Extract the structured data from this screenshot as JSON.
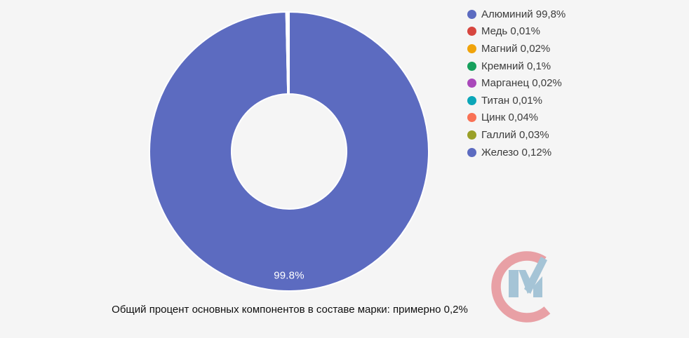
{
  "background_color": "#f5f5f5",
  "chart_data": {
    "type": "pie",
    "variant": "donut",
    "legend_position": "right",
    "donut_hole_ratio": 0.41,
    "border_color": "#ffffff",
    "slices": [
      {
        "label": "Алюминий",
        "value": 99.8,
        "display": "99,8%",
        "legend_label": "Алюминий 99,8%",
        "color": "#5c6bc0"
      },
      {
        "label": "Медь",
        "value": 0.01,
        "display": "0,01%",
        "legend_label": "Медь 0,01%",
        "color": "#d7463f"
      },
      {
        "label": "Магний",
        "value": 0.02,
        "display": "0,02%",
        "legend_label": "Магний 0,02%",
        "color": "#f0a30a"
      },
      {
        "label": "Кремний",
        "value": 0.1,
        "display": "0,1%",
        "legend_label": "Кремний 0,1%",
        "color": "#16a05c"
      },
      {
        "label": "Марганец",
        "value": 0.02,
        "display": "0,02%",
        "legend_label": "Марганец 0,02%",
        "color": "#a948ba"
      },
      {
        "label": "Титан",
        "value": 0.01,
        "display": "0,01%",
        "legend_label": "Титан 0,01%",
        "color": "#0ba6b8"
      },
      {
        "label": "Цинк",
        "value": 0.04,
        "display": "0,04%",
        "legend_label": "Цинк 0,04%",
        "color": "#f97155"
      },
      {
        "label": "Галлий",
        "value": 0.03,
        "display": "0,03%",
        "legend_label": "Галлий 0,03%",
        "color": "#9aa028"
      },
      {
        "label": "Железо",
        "value": 0.12,
        "display": "0,12%",
        "legend_label": "Железо 0,12%",
        "color": "#5c6bc0"
      }
    ],
    "slice_label": {
      "text": "99.8%",
      "color": "#ffffff"
    }
  },
  "caption": "Общий процент основных компонентов в составе марки: примерно 0,2%",
  "logo": {
    "name": "CM watermark",
    "c_color": "#e8a0a5",
    "m_color": "#a5c4d6"
  }
}
